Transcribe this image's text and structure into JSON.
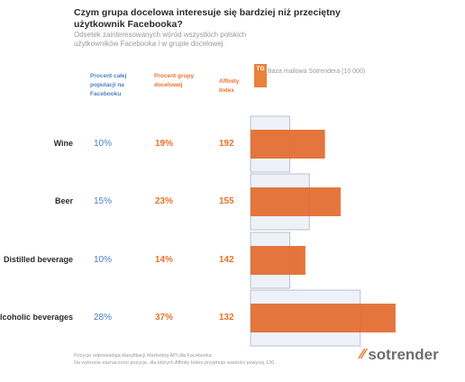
{
  "header": {
    "title": "Czym grupa docelowa interesuje się bardziej niż przeciętny użytkownik Facebooka?",
    "subtitle": "Odsetek zainteresowanych wśród wszystkich polskich użytkowników Facebooka i w grupie docelowej"
  },
  "columns": {
    "population": "Procent całej populacji na Facebooku",
    "target": "Procent grupy docelowej",
    "affinity": "Affinity Index"
  },
  "legend": {
    "tg_label": "TG",
    "base_label": "Baza mailowa Sotrendera (10 000)"
  },
  "rows": [
    {
      "label": "Wine",
      "population": "10%",
      "target": "19%",
      "affinity": "192"
    },
    {
      "label": "Beer",
      "population": "15%",
      "target": "23%",
      "affinity": "155"
    },
    {
      "label": "Distilled beverage",
      "population": "10%",
      "target": "14%",
      "affinity": "142"
    },
    {
      "label": "Alcoholic beverages",
      "population": "28%",
      "target": "37%",
      "affinity": "132"
    }
  ],
  "footnote": {
    "line1": "Pozycje odpowiadają klasyfikacji Marketing API dla Facebooka",
    "line2": "Na wykresie zaznaczono pozycje, dla których Affinity Index przyjmuje wartości powyżej 130."
  },
  "logo": {
    "text": "sotrender"
  },
  "colors": {
    "population_fill": "#eef1f7",
    "population_stroke": "#b8c0d0",
    "target_fill": "#e26a2c",
    "population_text": "#4d7fc4",
    "target_text": "#e8722c"
  },
  "chart_data": {
    "type": "bar",
    "orientation": "horizontal",
    "categories": [
      "Wine",
      "Beer",
      "Distilled beverage",
      "Alcoholic beverages"
    ],
    "series": [
      {
        "name": "Procent całej populacji na Facebooku",
        "values": [
          10,
          15,
          10,
          28
        ]
      },
      {
        "name": "Procent grupy docelowej",
        "values": [
          19,
          23,
          14,
          37
        ]
      }
    ],
    "affinity_index": [
      192,
      155,
      142,
      132
    ],
    "xlim": [
      0,
      40
    ]
  }
}
